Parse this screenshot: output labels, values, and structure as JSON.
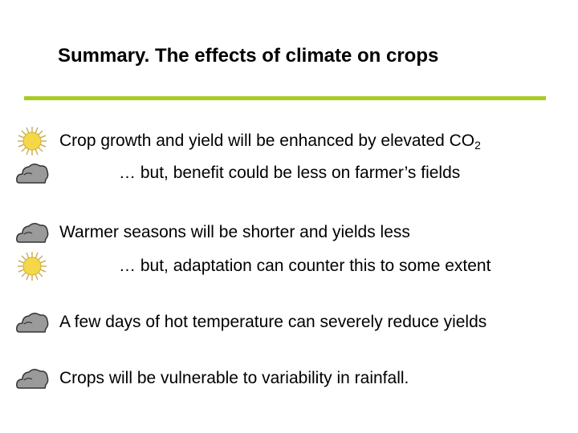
{
  "title": "Summary. The effects of climate on crops",
  "colors": {
    "rule": "#a8cc24",
    "sun": "#f5d84a",
    "cloud": "#9a9a9a"
  },
  "items": [
    {
      "icon": "sun-icon",
      "text": "Crop growth and yield will be enhanced by elevated CO",
      "sub": "2"
    },
    {
      "icon": "cloud-icon",
      "text": "… but, benefit could be less on farmer’s fields"
    },
    {
      "icon": "cloud-icon",
      "text": "Warmer seasons will be shorter and yields less"
    },
    {
      "icon": "sun-icon",
      "text": "… but, adaptation can counter this to some extent"
    },
    {
      "icon": "cloud-icon",
      "text": "A few days of hot temperature can severely reduce yields"
    },
    {
      "icon": "cloud-icon",
      "text": "Crops will be vulnerable to variability in rainfall."
    }
  ]
}
